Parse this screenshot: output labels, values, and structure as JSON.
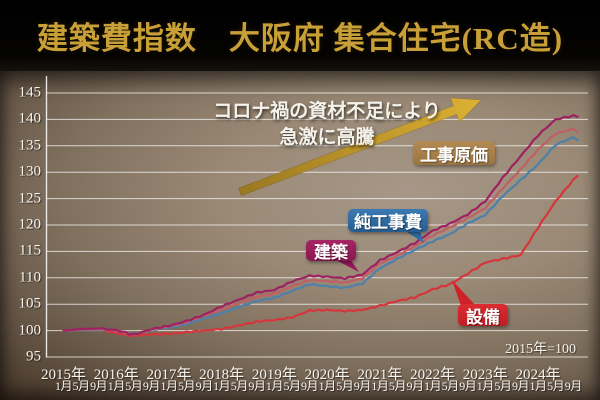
{
  "title": "建築費指数　大阪府 集合住宅(RC造)",
  "annotation": {
    "line1": "コロナ禍の資材不足により",
    "line2": "急激に高騰"
  },
  "note": "2015年=100",
  "arrow_icon_color_from": "#9a7820",
  "arrow_icon_color_to": "#ddb134",
  "chart_data": {
    "type": "line",
    "title": "建築費指数 大阪府 集合住宅(RC造)",
    "ylim": [
      95,
      145
    ],
    "yticks": [
      145,
      140,
      135,
      130,
      125,
      120,
      115,
      110,
      105,
      100,
      95
    ],
    "grid": true,
    "x_axis": {
      "years": [
        "2015年",
        "2016年",
        "2017年",
        "2018年",
        "2019年",
        "2020年",
        "2021年",
        "2022年",
        "2023年",
        "2024年"
      ],
      "months_per_year": [
        "1月",
        "5月",
        "9月"
      ]
    },
    "sample_months_from_2015_01": [
      0,
      4,
      8,
      12,
      16,
      20,
      24,
      28,
      32,
      36,
      40,
      44,
      48,
      52,
      56,
      60,
      64,
      68,
      72,
      76,
      80,
      84,
      88,
      92,
      96,
      100,
      104,
      108,
      112,
      116,
      117
    ],
    "series": [
      {
        "name": "設備",
        "color": "#d6363b",
        "values": [
          100,
          100.1,
          100.2,
          99.5,
          99.0,
          99.3,
          99.4,
          99.7,
          100.0,
          100.3,
          101.0,
          101.7,
          102.0,
          102.5,
          103.8,
          103.9,
          103.7,
          103.9,
          104.7,
          105.6,
          106.3,
          107.8,
          108.8,
          110.8,
          112.9,
          113.6,
          114.3,
          119.5,
          124.5,
          128.5,
          129.3
        ]
      },
      {
        "name": "純工事費",
        "color": "#4d80ab",
        "values": [
          100,
          100.1,
          100.2,
          100.0,
          99.3,
          100.1,
          100.6,
          101.2,
          102.3,
          103.3,
          104.5,
          105.6,
          106.2,
          107.5,
          108.8,
          108.4,
          108.1,
          108.9,
          111.8,
          113.6,
          115.3,
          116.9,
          118.3,
          120.3,
          121.9,
          125.5,
          128.5,
          131.5,
          135.2,
          136.6,
          136.1
        ]
      },
      {
        "name": "工事原価",
        "color": "#bf5f66",
        "values": [
          100,
          100.2,
          100.3,
          100.0,
          99.2,
          100.2,
          100.8,
          101.6,
          102.8,
          104.0,
          105.2,
          106.4,
          107.0,
          108.4,
          109.6,
          109.4,
          109.1,
          109.9,
          112.7,
          114.2,
          116.0,
          118.0,
          119.6,
          121.3,
          123.2,
          127.0,
          130.5,
          134.3,
          137.3,
          138.2,
          137.6
        ]
      },
      {
        "name": "建築",
        "color": "#9e2161",
        "values": [
          100,
          100.3,
          100.4,
          100.1,
          99.2,
          100.3,
          100.9,
          101.8,
          103.0,
          104.6,
          105.9,
          107.2,
          107.7,
          109.3,
          110.4,
          110.2,
          109.9,
          110.6,
          113.3,
          114.9,
          116.6,
          118.9,
          120.3,
          122.0,
          124.5,
          129.0,
          133.0,
          137.0,
          140.0,
          140.7,
          140.5
        ]
      }
    ]
  }
}
